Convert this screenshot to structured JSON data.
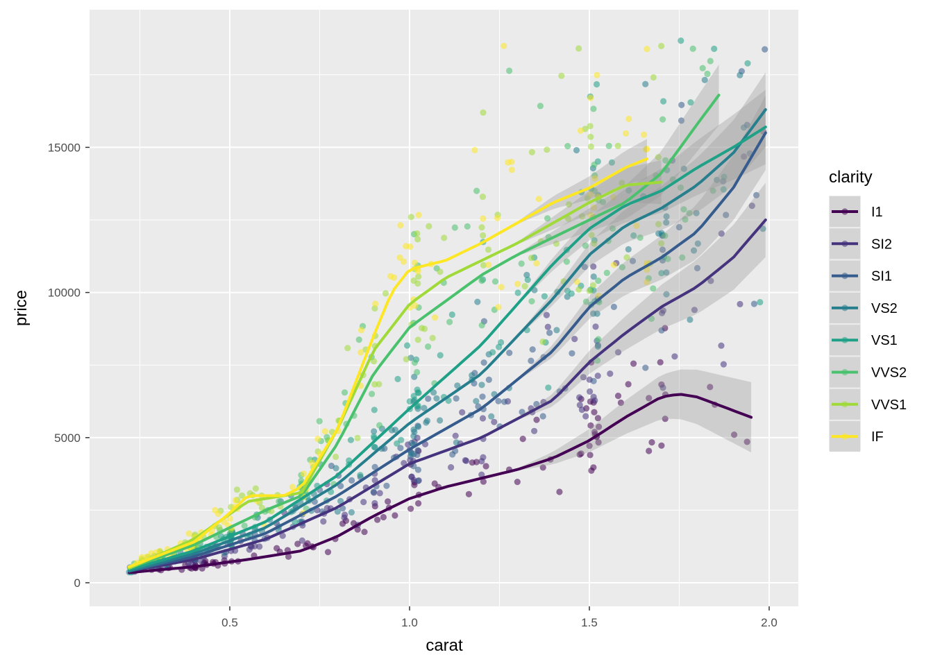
{
  "chart_data": {
    "type": "scatter",
    "xlabel": "carat",
    "ylabel": "price",
    "xlim": [
      0.2,
      2.0
    ],
    "ylim": [
      0,
      18800
    ],
    "x_ticks": [
      0.5,
      1.0,
      1.5,
      2.0
    ],
    "x_tick_labels": [
      "0.5",
      "1.0",
      "1.5",
      "2.0"
    ],
    "y_ticks": [
      0,
      5000,
      10000,
      15000
    ],
    "y_tick_labels": [
      "0",
      "5000",
      "10000",
      "15000"
    ],
    "grid": true,
    "background": "#ebebeb",
    "legend": {
      "title": "clarity",
      "position": "right",
      "entries": [
        "I1",
        "SI2",
        "SI1",
        "VS2",
        "VS1",
        "VVS2",
        "VVS1",
        "IF"
      ]
    },
    "series": [
      {
        "name": "I1",
        "color": "#440154",
        "x": [
          0.22,
          0.4,
          0.55,
          0.7,
          0.8,
          0.9,
          1.0,
          1.1,
          1.2,
          1.3,
          1.4,
          1.5,
          1.6,
          1.7,
          1.75,
          1.8,
          1.95
        ],
        "y": [
          350,
          550,
          800,
          1100,
          1600,
          2300,
          2900,
          3300,
          3600,
          3900,
          4300,
          4900,
          5700,
          6400,
          6500,
          6400,
          5700
        ]
      },
      {
        "name": "SI2",
        "color": "#46337e",
        "x": [
          0.22,
          0.4,
          0.6,
          0.8,
          1.0,
          1.2,
          1.4,
          1.5,
          1.6,
          1.7,
          1.8,
          1.9,
          1.99
        ],
        "y": [
          400,
          800,
          1500,
          2600,
          4100,
          5000,
          6300,
          7600,
          8600,
          9500,
          10200,
          11200,
          12500
        ]
      },
      {
        "name": "SI1",
        "color": "#365c8d",
        "x": [
          0.22,
          0.4,
          0.6,
          0.8,
          1.0,
          1.2,
          1.4,
          1.5,
          1.6,
          1.7,
          1.8,
          1.9,
          1.99
        ],
        "y": [
          400,
          900,
          1700,
          3000,
          4600,
          6000,
          8000,
          9500,
          10500,
          11200,
          12100,
          13600,
          15500
        ]
      },
      {
        "name": "VS2",
        "color": "#277f8e",
        "x": [
          0.22,
          0.4,
          0.6,
          0.8,
          1.0,
          1.2,
          1.4,
          1.5,
          1.6,
          1.7,
          1.8,
          1.9,
          1.99
        ],
        "y": [
          400,
          1000,
          1900,
          3400,
          5500,
          7200,
          9800,
          11300,
          12300,
          12900,
          13700,
          14800,
          16300
        ]
      },
      {
        "name": "VS1",
        "color": "#1fa187",
        "x": [
          0.22,
          0.4,
          0.6,
          0.8,
          1.0,
          1.2,
          1.4,
          1.5,
          1.6,
          1.7,
          1.8,
          1.9,
          1.99
        ],
        "y": [
          450,
          1100,
          2100,
          3700,
          6000,
          8200,
          11000,
          12200,
          13000,
          13500,
          14300,
          15000,
          15700
        ]
      },
      {
        "name": "VVS2",
        "color": "#4ac16d",
        "x": [
          0.22,
          0.4,
          0.6,
          0.7,
          0.8,
          0.9,
          1.0,
          1.1,
          1.2,
          1.3,
          1.4,
          1.5,
          1.6,
          1.7,
          1.8,
          1.86
        ],
        "y": [
          500,
          1300,
          2500,
          3000,
          4800,
          7200,
          8800,
          9700,
          10600,
          11300,
          11900,
          12500,
          13100,
          14100,
          15800,
          16800
        ]
      },
      {
        "name": "VVS1",
        "color": "#a0da39",
        "x": [
          0.22,
          0.4,
          0.55,
          0.65,
          0.7,
          0.8,
          0.9,
          1.0,
          1.1,
          1.2,
          1.3,
          1.4,
          1.5,
          1.6,
          1.7
        ],
        "y": [
          500,
          1500,
          2800,
          3000,
          3100,
          5300,
          8000,
          9600,
          10500,
          11100,
          11700,
          12400,
          13100,
          13700,
          13800
        ]
      },
      {
        "name": "IF",
        "color": "#fde725",
        "x": [
          0.22,
          0.4,
          0.5,
          0.55,
          0.65,
          0.7,
          0.8,
          0.9,
          0.95,
          1.0,
          1.1,
          1.2,
          1.3,
          1.4,
          1.5,
          1.6,
          1.66
        ],
        "y": [
          550,
          1400,
          2400,
          3000,
          3000,
          3300,
          5300,
          8500,
          10000,
          10800,
          11100,
          11700,
          12400,
          13100,
          13600,
          14300,
          14600
        ]
      }
    ]
  }
}
